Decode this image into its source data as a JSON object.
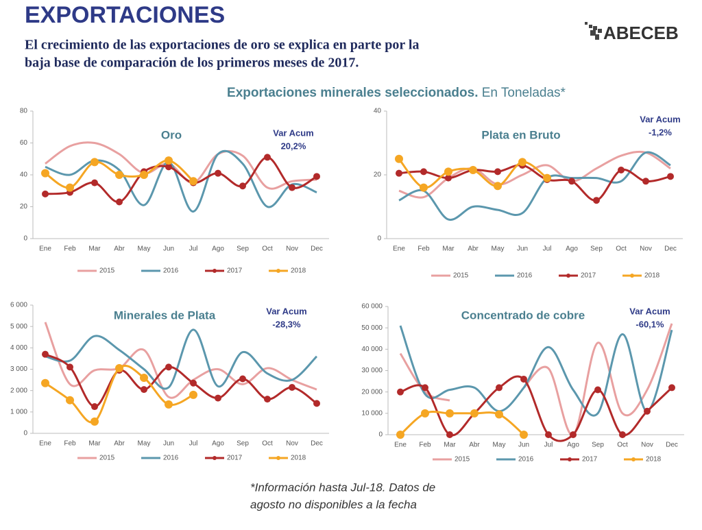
{
  "title": "EXPORTACIONES",
  "subtitle": [
    "El crecimiento de las exportaciones de oro se explica en parte por la",
    "baja base de comparación de los primeros meses de 2017."
  ],
  "logo": "ABECEB",
  "section_title": "Exportaciones minerales seleccionados.",
  "section_unit": "En Toneladas*",
  "footnote": [
    "*Información hasta Jul-18. Datos de",
    "agosto no disponibles a la fecha"
  ],
  "chart_data": [
    {
      "type": "line",
      "title": "Oro",
      "annotation_label": "Var Acum",
      "annotation_value": "20,2%",
      "categories": [
        "Ene",
        "Feb",
        "Mar",
        "Abr",
        "May",
        "Jun",
        "Jul",
        "Ago",
        "Sep",
        "Oct",
        "Nov",
        "Dec"
      ],
      "ylim": [
        0,
        80
      ],
      "yticks": [
        0,
        20,
        40,
        60,
        80
      ],
      "series": [
        {
          "name": "2015",
          "color": "#e8a0a0",
          "markers": false,
          "values": [
            47,
            58,
            60,
            53,
            41,
            47,
            35,
            53,
            52,
            32,
            36,
            37
          ]
        },
        {
          "name": "2016",
          "color": "#5b97ad",
          "markers": false,
          "values": [
            45,
            40,
            49,
            43,
            21,
            48,
            17,
            53,
            47,
            20,
            34,
            29
          ]
        },
        {
          "name": "2017",
          "color": "#b22a2a",
          "markers": true,
          "values": [
            28,
            29,
            35,
            23,
            42,
            45,
            35,
            41,
            33,
            51,
            32,
            39
          ]
        },
        {
          "name": "2018",
          "color": "#f5a623",
          "markers": true,
          "values": [
            41,
            32,
            48,
            40,
            40,
            49,
            36,
            null,
            null,
            null,
            null,
            null
          ]
        }
      ]
    },
    {
      "type": "line",
      "title": "Plata en Bruto",
      "annotation_label": "Var Acum",
      "annotation_value": "-1,2%",
      "categories": [
        "Ene",
        "Feb",
        "Mar",
        "Abr",
        "May",
        "Jun",
        "Jul",
        "Ago",
        "Sep",
        "Oct",
        "Nov",
        "Dec"
      ],
      "ylim": [
        0,
        40
      ],
      "yticks": [
        0,
        20,
        40
      ],
      "series": [
        {
          "name": "2015",
          "color": "#e8a0a0",
          "markers": false,
          "values": [
            15,
            13,
            19,
            22,
            17,
            20,
            23,
            18,
            22,
            26,
            27,
            22
          ]
        },
        {
          "name": "2016",
          "color": "#5b97ad",
          "markers": false,
          "values": [
            12,
            15,
            6,
            10,
            9,
            8,
            19,
            19,
            19,
            18,
            27,
            23
          ]
        },
        {
          "name": "2017",
          "color": "#b22a2a",
          "markers": true,
          "values": [
            20.5,
            21,
            19,
            21.5,
            21,
            23,
            18.5,
            18,
            12,
            21.5,
            18,
            19.5
          ]
        },
        {
          "name": "2018",
          "color": "#f5a623",
          "markers": true,
          "values": [
            25,
            16,
            21,
            21.5,
            16.5,
            24,
            19,
            null,
            null,
            null,
            null,
            null
          ]
        }
      ]
    },
    {
      "type": "line",
      "title": "Minerales de Plata",
      "annotation_label": "Var Acum",
      "annotation_value": "-28,3%",
      "categories": [
        "Ene",
        "Feb",
        "Mar",
        "Abr",
        "May",
        "Jun",
        "Jul",
        "Ago",
        "Sep",
        "Oct",
        "Nov",
        "Dec"
      ],
      "ylim": [
        0,
        6000
      ],
      "yticks": [
        0,
        {
          "value": 1000,
          "label": "1 000"
        },
        {
          "value": 2000,
          "label": "2 000"
        },
        {
          "value": 3000,
          "label": "3 000"
        },
        {
          "value": 4000,
          "label": "4 000"
        },
        {
          "value": 5000,
          "label": "5 000"
        },
        {
          "value": 6000,
          "label": "6 000"
        }
      ],
      "series": [
        {
          "name": "2015",
          "color": "#e8a0a0",
          "markers": false,
          "values": [
            5200,
            2300,
            2950,
            3050,
            3900,
            1700,
            2500,
            3000,
            2300,
            3050,
            2500,
            2050
          ]
        },
        {
          "name": "2016",
          "color": "#5b97ad",
          "markers": false,
          "values": [
            3600,
            3400,
            4550,
            3900,
            3000,
            2150,
            4850,
            2200,
            3800,
            2800,
            2500,
            3600
          ]
        },
        {
          "name": "2017",
          "color": "#b22a2a",
          "markers": true,
          "values": [
            3700,
            3100,
            1250,
            2950,
            2050,
            3100,
            2350,
            1650,
            2550,
            1600,
            2150,
            1400
          ]
        },
        {
          "name": "2018",
          "color": "#f5a623",
          "markers": true,
          "values": [
            2350,
            1550,
            550,
            3050,
            2600,
            1350,
            1800,
            null,
            null,
            null,
            null,
            null
          ]
        }
      ]
    },
    {
      "type": "line",
      "title": "Concentrado de cobre",
      "annotation_label": "Var Acum",
      "annotation_value": "-60,1%",
      "categories": [
        "Ene",
        "Feb",
        "Mar",
        "Abr",
        "May",
        "Jun",
        "Jul",
        "Ago",
        "Sep",
        "Oct",
        "Nov",
        "Dec"
      ],
      "ylim": [
        0,
        60000
      ],
      "yticks": [
        0,
        {
          "value": 10000,
          "label": "10 000"
        },
        {
          "value": 20000,
          "label": "20 000"
        },
        {
          "value": 30000,
          "label": "30 000"
        },
        {
          "value": 40000,
          "label": "40 000"
        },
        {
          "value": 50000,
          "label": "50 000"
        },
        {
          "value": 60000,
          "label": "60 000"
        }
      ],
      "series": [
        {
          "name": "2015",
          "color": "#e8a0a0",
          "markers": false,
          "values": [
            38000,
            20000,
            16000,
            null,
            null,
            22000,
            31000,
            0,
            43000,
            10000,
            21000,
            52000
          ]
        },
        {
          "name": "2016",
          "color": "#5b97ad",
          "markers": false,
          "values": [
            51000,
            19000,
            21000,
            22000,
            11000,
            22000,
            41000,
            21000,
            10000,
            47000,
            11000,
            49000
          ]
        },
        {
          "name": "2017",
          "color": "#b22a2a",
          "markers": true,
          "values": [
            20000,
            22000,
            0,
            10000,
            22000,
            26000,
            0,
            0,
            21000,
            0,
            11000,
            22000
          ]
        },
        {
          "name": "2018",
          "color": "#f5a623",
          "markers": true,
          "values": [
            0,
            10000,
            10000,
            10000,
            9500,
            0,
            null,
            null,
            null,
            null,
            null,
            null
          ]
        }
      ]
    }
  ]
}
